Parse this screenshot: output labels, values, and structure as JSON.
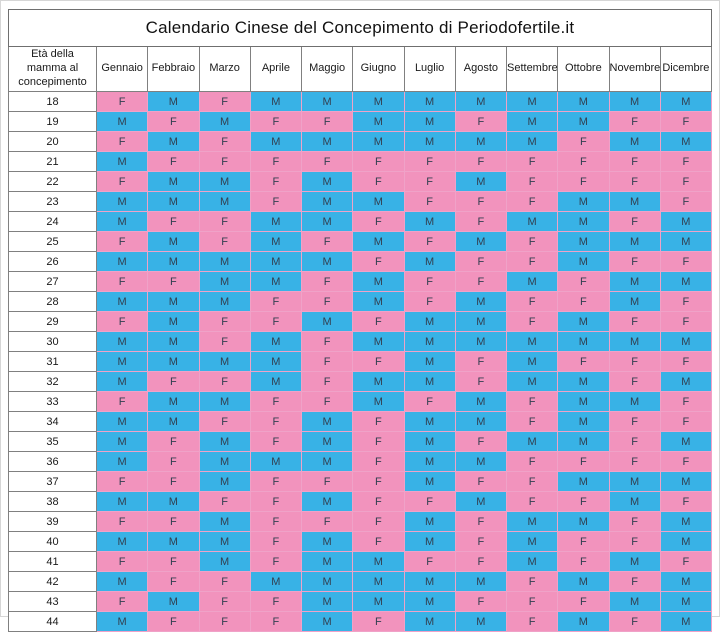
{
  "title": "Calendario Cinese del Concepimento di Periodofertile.it",
  "colors": {
    "female": "#F293BD",
    "male": "#38B2E6",
    "gridline": "#F0A2C8",
    "letter": "#333F50"
  },
  "chart_data": {
    "type": "table",
    "title": "Calendario Cinese del Concepimento di Periodofertile.it",
    "corner_header": "Età della mamma al concepimento",
    "columns": [
      "Gennaio",
      "Febbraio",
      "Marzo",
      "Aprile",
      "Maggio",
      "Giugno",
      "Luglio",
      "Agosto",
      "Settembre",
      "Ottobre",
      "Novembre",
      "Dicembre"
    ],
    "value_meanings": {
      "F": "femmina (pink)",
      "M": "maschio (blue)"
    },
    "rows": [
      {
        "age": "18",
        "values": [
          "F",
          "M",
          "F",
          "M",
          "M",
          "M",
          "M",
          "M",
          "M",
          "M",
          "M",
          "M"
        ]
      },
      {
        "age": "19",
        "values": [
          "M",
          "F",
          "M",
          "F",
          "F",
          "M",
          "M",
          "F",
          "M",
          "M",
          "F",
          "F"
        ]
      },
      {
        "age": "20",
        "values": [
          "F",
          "M",
          "F",
          "M",
          "M",
          "M",
          "M",
          "M",
          "M",
          "F",
          "M",
          "M"
        ]
      },
      {
        "age": "21",
        "values": [
          "M",
          "F",
          "F",
          "F",
          "F",
          "F",
          "F",
          "F",
          "F",
          "F",
          "F",
          "F"
        ]
      },
      {
        "age": "22",
        "values": [
          "F",
          "M",
          "M",
          "F",
          "M",
          "F",
          "F",
          "M",
          "F",
          "F",
          "F",
          "F"
        ]
      },
      {
        "age": "23",
        "values": [
          "M",
          "M",
          "M",
          "F",
          "M",
          "M",
          "F",
          "F",
          "F",
          "M",
          "M",
          "F"
        ]
      },
      {
        "age": "24",
        "values": [
          "M",
          "F",
          "F",
          "M",
          "M",
          "F",
          "M",
          "F",
          "M",
          "M",
          "F",
          "M"
        ]
      },
      {
        "age": "25",
        "values": [
          "F",
          "M",
          "F",
          "M",
          "F",
          "M",
          "F",
          "M",
          "F",
          "M",
          "M",
          "M"
        ]
      },
      {
        "age": "26",
        "values": [
          "M",
          "M",
          "M",
          "M",
          "M",
          "F",
          "M",
          "F",
          "F",
          "M",
          "F",
          "F"
        ]
      },
      {
        "age": "27",
        "values": [
          "F",
          "F",
          "M",
          "M",
          "F",
          "M",
          "F",
          "F",
          "M",
          "F",
          "M",
          "M"
        ]
      },
      {
        "age": "28",
        "values": [
          "M",
          "M",
          "M",
          "F",
          "F",
          "M",
          "F",
          "M",
          "F",
          "F",
          "M",
          "F"
        ]
      },
      {
        "age": "29",
        "values": [
          "F",
          "M",
          "F",
          "F",
          "M",
          "F",
          "M",
          "M",
          "F",
          "M",
          "F",
          "F"
        ]
      },
      {
        "age": "30",
        "values": [
          "M",
          "M",
          "F",
          "M",
          "F",
          "M",
          "M",
          "M",
          "M",
          "M",
          "M",
          "M"
        ]
      },
      {
        "age": "31",
        "values": [
          "M",
          "M",
          "M",
          "M",
          "F",
          "F",
          "M",
          "F",
          "M",
          "F",
          "F",
          "F"
        ]
      },
      {
        "age": "32",
        "values": [
          "M",
          "F",
          "F",
          "M",
          "F",
          "M",
          "M",
          "F",
          "M",
          "M",
          "F",
          "M"
        ]
      },
      {
        "age": "33",
        "values": [
          "F",
          "M",
          "M",
          "F",
          "F",
          "M",
          "F",
          "M",
          "F",
          "M",
          "M",
          "F"
        ]
      },
      {
        "age": "34",
        "values": [
          "M",
          "M",
          "F",
          "F",
          "M",
          "F",
          "M",
          "M",
          "F",
          "M",
          "F",
          "F"
        ]
      },
      {
        "age": "35",
        "values": [
          "M",
          "F",
          "M",
          "F",
          "M",
          "F",
          "M",
          "F",
          "M",
          "M",
          "F",
          "M"
        ]
      },
      {
        "age": "36",
        "values": [
          "M",
          "F",
          "M",
          "M",
          "M",
          "F",
          "M",
          "M",
          "F",
          "F",
          "F",
          "F"
        ]
      },
      {
        "age": "37",
        "values": [
          "F",
          "F",
          "M",
          "F",
          "F",
          "F",
          "M",
          "F",
          "F",
          "M",
          "M",
          "M"
        ]
      },
      {
        "age": "38",
        "values": [
          "M",
          "M",
          "F",
          "F",
          "M",
          "F",
          "F",
          "M",
          "F",
          "F",
          "M",
          "F"
        ]
      },
      {
        "age": "39",
        "values": [
          "F",
          "F",
          "M",
          "F",
          "F",
          "F",
          "M",
          "F",
          "M",
          "M",
          "F",
          "M"
        ]
      },
      {
        "age": "40",
        "values": [
          "M",
          "M",
          "M",
          "F",
          "M",
          "F",
          "M",
          "F",
          "M",
          "F",
          "F",
          "M"
        ]
      },
      {
        "age": "41",
        "values": [
          "F",
          "F",
          "M",
          "F",
          "M",
          "M",
          "F",
          "F",
          "M",
          "F",
          "M",
          "F"
        ]
      },
      {
        "age": "42",
        "values": [
          "M",
          "F",
          "F",
          "M",
          "M",
          "M",
          "M",
          "M",
          "F",
          "M",
          "F",
          "M"
        ]
      },
      {
        "age": "43",
        "values": [
          "F",
          "M",
          "F",
          "F",
          "M",
          "M",
          "M",
          "F",
          "F",
          "F",
          "M",
          "M"
        ]
      },
      {
        "age": "44",
        "values": [
          "M",
          "F",
          "F",
          "F",
          "M",
          "F",
          "M",
          "M",
          "F",
          "M",
          "F",
          "M"
        ]
      }
    ]
  }
}
